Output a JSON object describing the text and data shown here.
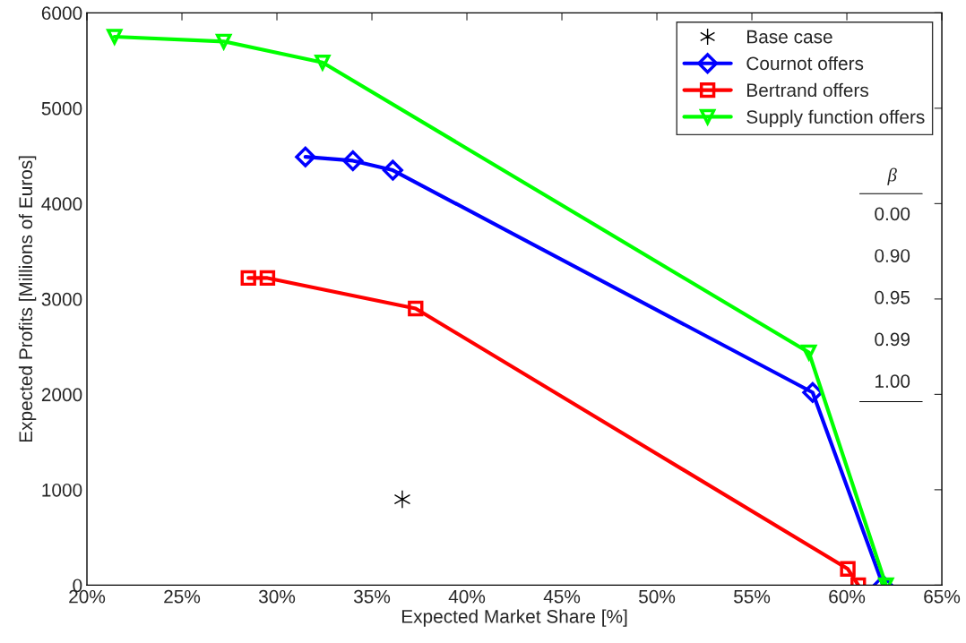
{
  "chart_data": {
    "type": "line",
    "xlabel": "Expected Market Share [%]",
    "ylabel": "Expected Profits [Millions of Euros]",
    "xlim": [
      20,
      65
    ],
    "xticks": [
      {
        "value": 20,
        "label": "20%"
      },
      {
        "value": 25,
        "label": "25%"
      },
      {
        "value": 30,
        "label": "30%"
      },
      {
        "value": 35,
        "label": "35%"
      },
      {
        "value": 40,
        "label": "40%"
      },
      {
        "value": 45,
        "label": "45%"
      },
      {
        "value": 50,
        "label": "50%"
      },
      {
        "value": 55,
        "label": "55%"
      },
      {
        "value": 60,
        "label": "60%"
      },
      {
        "value": 65,
        "label": "65%"
      }
    ],
    "ylim": [
      0,
      6000
    ],
    "yticks": [
      0,
      1000,
      2000,
      3000,
      4000,
      5000,
      6000
    ],
    "grid": false,
    "legend": "top right",
    "annotations": [
      "β",
      "0.00",
      "0.90",
      "0.95",
      "0.99",
      "1.00"
    ],
    "series": [
      {
        "name": "Base case",
        "type": "scatter",
        "marker": "cross",
        "color": "#000000",
        "x": [
          36.6
        ],
        "values": [
          900
        ]
      },
      {
        "name": "Cournot offers",
        "marker": "diamond",
        "color": "#0000ff",
        "x": [
          31.5,
          34.0,
          36.1,
          58.2,
          61.9
        ],
        "values": [
          4490,
          4450,
          4350,
          2020,
          0
        ]
      },
      {
        "name": "Bertrand offers",
        "marker": "square",
        "color": "#ff0000",
        "x": [
          28.5,
          29.5,
          37.3,
          60.05,
          60.6
        ],
        "values": [
          3220,
          3220,
          2900,
          170,
          0
        ]
      },
      {
        "name": "Supply function offers",
        "marker": "triangle",
        "color": "#00ff00",
        "x": [
          21.45,
          27.2,
          32.4,
          58.0,
          62.06
        ],
        "values": [
          5750,
          5700,
          5480,
          2440,
          0
        ]
      }
    ]
  }
}
